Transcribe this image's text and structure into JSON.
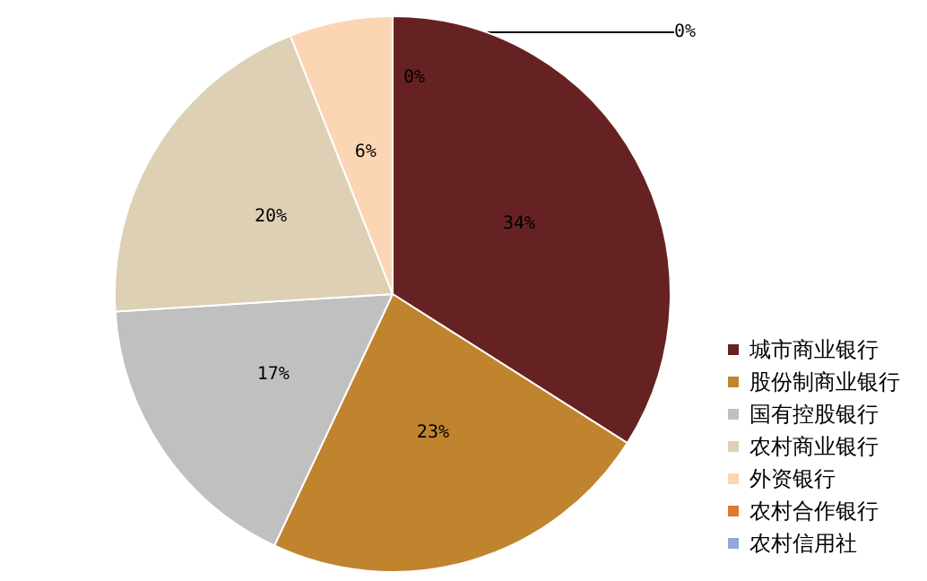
{
  "chart_data": {
    "type": "pie",
    "categories": [
      "城市商业银行",
      "股份制商业银行",
      "国有控股银行",
      "农村商业银行",
      "外资银行",
      "农村合作银行",
      "农村信用社"
    ],
    "values": [
      34,
      23,
      17,
      20,
      6,
      0,
      0
    ],
    "colors": [
      "#662222",
      "#c0842f",
      "#c0c0c0",
      "#ddd0b4",
      "#fcd5b4",
      "#e0782f",
      "#8fa8d8"
    ],
    "value_labels": [
      "34%",
      "23%",
      "17%",
      "20%",
      "6%",
      "0%",
      "0%"
    ],
    "legend": "right"
  }
}
